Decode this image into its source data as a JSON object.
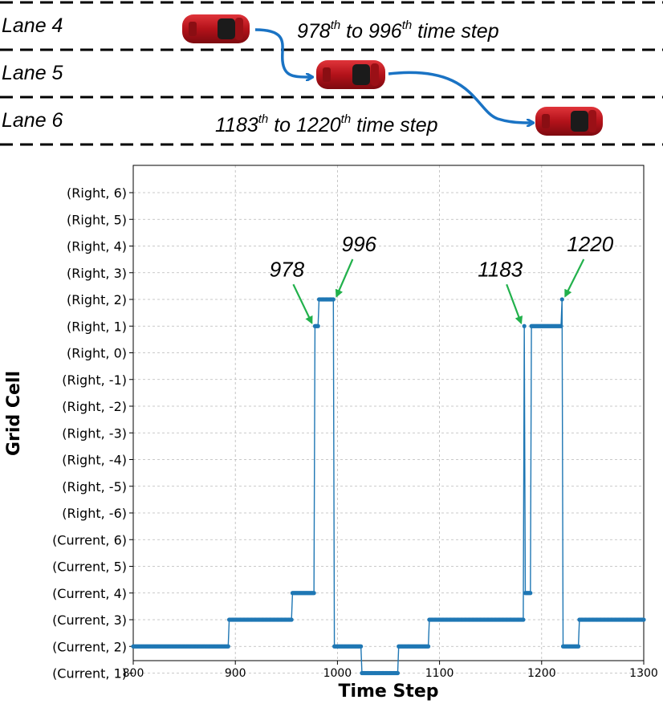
{
  "lanes": {
    "lane4": "Lane 4",
    "lane5": "Lane 5",
    "lane6": "Lane 6"
  },
  "captions": {
    "first": {
      "a": "978",
      "a_sup": "th",
      "mid": " to ",
      "b": "996",
      "b_sup": "th",
      "tail": " time step"
    },
    "second": {
      "a": "1183",
      "a_sup": "th",
      "mid": " to ",
      "b": "1220",
      "b_sup": "th",
      "tail": " time step"
    }
  },
  "colors": {
    "series": "#1f77b4",
    "annotation_arrow": "#22b14c",
    "maneuver_arrow": "#1a73c4",
    "car_body": "#c0171c"
  },
  "chart_data": {
    "type": "line",
    "xlabel": "Time Step",
    "ylabel": "Grid Cell",
    "xlim": [
      800,
      1300
    ],
    "xticks": [
      800,
      900,
      1000,
      1100,
      1200,
      1300
    ],
    "grid": true,
    "yticks": [
      "(Current, 1)",
      "(Current, 2)",
      "(Current, 3)",
      "(Current, 4)",
      "(Current, 5)",
      "(Current, 6)",
      "(Right, -6)",
      "(Right, -5)",
      "(Right, -4)",
      "(Right, -3)",
      "(Right, -2)",
      "(Right, -1)",
      "(Right, 0)",
      "(Right, 1)",
      "(Right, 2)",
      "(Right, 3)",
      "(Right, 4)",
      "(Right, 5)",
      "(Right, 6)"
    ],
    "series": [
      {
        "segments": [
          {
            "x0": 800,
            "x1": 893,
            "y": "(Current, 2)"
          },
          {
            "x0": 894,
            "x1": 955,
            "y": "(Current, 3)"
          },
          {
            "x0": 956,
            "x1": 977,
            "y": "(Current, 4)"
          },
          {
            "x0": 978,
            "x1": 981,
            "y": "(Right, 1)"
          },
          {
            "x0": 982,
            "x1": 996,
            "y": "(Right, 2)"
          },
          {
            "x0": 997,
            "x1": 1023,
            "y": "(Current, 2)"
          },
          {
            "x0": 1024,
            "x1": 1059,
            "y": "(Current, 1)"
          },
          {
            "x0": 1060,
            "x1": 1089,
            "y": "(Current, 2)"
          },
          {
            "x0": 1090,
            "x1": 1182,
            "y": "(Current, 3)"
          },
          {
            "x0": 1183,
            "x1": 1183,
            "y": "(Right, 1)"
          },
          {
            "x0": 1184,
            "x1": 1189,
            "y": "(Current, 4)"
          },
          {
            "x0": 1190,
            "x1": 1219,
            "y": "(Right, 1)"
          },
          {
            "x0": 1220,
            "x1": 1220,
            "y": "(Right, 2)"
          },
          {
            "x0": 1221,
            "x1": 1236,
            "y": "(Current, 2)"
          },
          {
            "x0": 1237,
            "x1": 1300,
            "y": "(Current, 3)"
          }
        ]
      }
    ],
    "annotations": [
      {
        "text": "978",
        "x": 978,
        "y": "(Right, 1)"
      },
      {
        "text": "996",
        "x": 996,
        "y": "(Right, 2)"
      },
      {
        "text": "1183",
        "x": 1183,
        "y": "(Right, 1)"
      },
      {
        "text": "1220",
        "x": 1220,
        "y": "(Right, 2)"
      }
    ]
  }
}
